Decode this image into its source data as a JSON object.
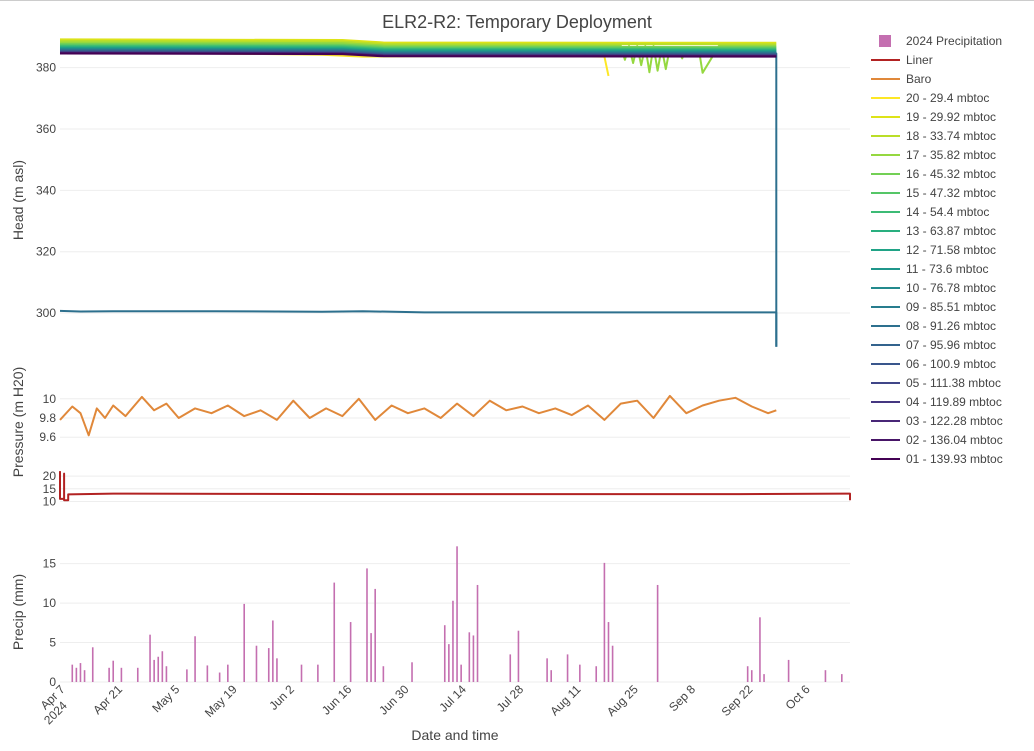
{
  "chart_data": {
    "title": "ELR2-R2: Temporary Deployment",
    "xlabel": "Date and time",
    "x_ticks": [
      "Apr 7\n2024",
      "Apr 21",
      "May 5",
      "May 19",
      "Jun 2",
      "Jun 16",
      "Jun 30",
      "Jul 14",
      "Jul 28",
      "Aug 11",
      "Aug 25",
      "Sep 8",
      "Sep 22",
      "Oct 6"
    ],
    "x_range": [
      "2024-04-07",
      "2024-10-17"
    ],
    "legend_position": "right",
    "panels": [
      {
        "name": "head",
        "type": "line",
        "ylabel": "Head (m asl)",
        "ylim": [
          286,
          389
        ],
        "y_ticks": [
          300,
          320,
          340,
          360,
          380
        ],
        "series": [
          {
            "name": "20 - 29.4 mbtoc",
            "color": "#fde725",
            "x": [
              "2024-04-07",
              "2024-05-15",
              "2024-06-10",
              "2024-06-20",
              "2024-07-20",
              "2024-08-18",
              "2024-08-19"
            ],
            "y": [
              384.6,
              384.6,
              384.2,
              383.6,
              383.9,
              383.6,
              377.3
            ]
          },
          {
            "name": "19 - 29.92 mbtoc",
            "color": "#dde318",
            "x": [
              "2024-04-07",
              "2024-06-15",
              "2024-06-25",
              "2024-09-29"
            ],
            "y": [
              389.2,
              389.0,
              388.2,
              388.1
            ]
          },
          {
            "name": "18 - 33.74 mbtoc",
            "color": "#bade28",
            "x": [
              "2024-04-07",
              "2024-06-15",
              "2024-06-25",
              "2024-09-29"
            ],
            "y": [
              388.7,
              388.5,
              387.7,
              387.6
            ]
          },
          {
            "name": "17 - 35.82 mbtoc",
            "color": "#95d840",
            "x": [
              "2024-04-07",
              "2024-06-15",
              "2024-06-25",
              "2024-08-22",
              "2024-08-23",
              "2024-08-24",
              "2024-08-25",
              "2024-08-26",
              "2024-08-27",
              "2024-08-28",
              "2024-08-29",
              "2024-08-30",
              "2024-08-31",
              "2024-09-01",
              "2024-09-02",
              "2024-09-03",
              "2024-09-05",
              "2024-09-06",
              "2024-09-07",
              "2024-09-10",
              "2024-09-11",
              "2024-09-15",
              "2024-09-29"
            ],
            "y": [
              388.2,
              388.0,
              387.2,
              387.1,
              382.5,
              387.0,
              381.5,
              387.0,
              380.8,
              387.0,
              378.5,
              387.0,
              379.0,
              386.5,
              379.5,
              386.5,
              386.5,
              383.0,
              386.6,
              386.6,
              378.3,
              387.1,
              387.1
            ]
          },
          {
            "name": "16 - 45.32 mbtoc",
            "color": "#73d055",
            "x": [
              "2024-04-07",
              "2024-06-15",
              "2024-06-25",
              "2024-09-29"
            ],
            "y": [
              387.7,
              387.5,
              386.8,
              386.7
            ]
          },
          {
            "name": "15 - 47.32 mbtoc",
            "color": "#55c667",
            "x": [
              "2024-04-07",
              "2024-06-15",
              "2024-06-25",
              "2024-09-29"
            ],
            "y": [
              387.3,
              387.1,
              386.4,
              386.3
            ]
          },
          {
            "name": "14 - 54.4 mbtoc",
            "color": "#3cbb75",
            "x": [
              "2024-04-07",
              "2024-06-15",
              "2024-06-25",
              "2024-09-29"
            ],
            "y": [
              387.0,
              386.8,
              386.1,
              386.0
            ]
          },
          {
            "name": "13 - 63.87 mbtoc",
            "color": "#29af7f",
            "x": [
              "2024-04-07",
              "2024-06-15",
              "2024-06-25",
              "2024-09-29"
            ],
            "y": [
              386.7,
              386.5,
              385.8,
              385.7
            ]
          },
          {
            "name": "12 - 71.58 mbtoc",
            "color": "#20a386",
            "x": [
              "2024-04-07",
              "2024-06-15",
              "2024-06-25",
              "2024-09-29"
            ],
            "y": [
              386.4,
              386.2,
              385.5,
              385.4
            ]
          },
          {
            "name": "11 - 73.6 mbtoc",
            "color": "#1f968b",
            "x": [
              "2024-04-07",
              "2024-06-15",
              "2024-06-25",
              "2024-09-29"
            ],
            "y": [
              386.2,
              386.0,
              385.3,
              385.2
            ]
          },
          {
            "name": "10 - 76.78 mbtoc",
            "color": "#238a8d",
            "x": [
              "2024-04-07",
              "2024-06-15",
              "2024-06-25",
              "2024-09-29"
            ],
            "y": [
              386.0,
              385.8,
              385.1,
              385.0
            ]
          },
          {
            "name": "09 - 85.51 mbtoc",
            "color": "#287d8e",
            "x": [
              "2024-04-07",
              "2024-06-15",
              "2024-06-25",
              "2024-09-29"
            ],
            "y": [
              385.8,
              385.6,
              384.9,
              384.8
            ]
          },
          {
            "name": "08 - 91.26 mbtoc",
            "color": "#2d708e",
            "x": [
              "2024-04-07",
              "2024-06-15",
              "2024-06-25",
              "2024-09-29",
              "2024-09-29",
              "2024-09-29"
            ],
            "y": [
              385.6,
              385.4,
              384.7,
              384.6,
              300.0,
              289.0
            ]
          },
          {
            "name": "07 - 95.96 mbtoc",
            "color": "#33638d",
            "x": [
              "2024-04-07",
              "2024-06-15",
              "2024-06-25",
              "2024-09-29"
            ],
            "y": [
              385.4,
              385.2,
              384.5,
              384.4
            ]
          },
          {
            "name": "06 - 100.9 mbtoc",
            "color": "#39568c",
            "x": [
              "2024-04-07",
              "2024-06-15",
              "2024-06-25",
              "2024-09-29"
            ],
            "y": [
              385.2,
              385.0,
              384.3,
              384.2
            ]
          },
          {
            "name": "05 - 111.38 mbtoc",
            "color": "#404688",
            "x": [
              "2024-04-07",
              "2024-06-15",
              "2024-06-25",
              "2024-09-29"
            ],
            "y": [
              385.0,
              384.8,
              384.1,
              384.0
            ]
          },
          {
            "name": "04 - 119.89 mbtoc",
            "color": "#453781",
            "x": [
              "2024-04-07",
              "2024-06-15",
              "2024-06-25",
              "2024-09-29"
            ],
            "y": [
              384.9,
              384.7,
              384.0,
              383.9
            ]
          },
          {
            "name": "03 - 122.28 mbtoc",
            "color": "#482677",
            "x": [
              "2024-04-07",
              "2024-06-15",
              "2024-06-25",
              "2024-09-29"
            ],
            "y": [
              384.8,
              384.6,
              383.9,
              383.8
            ]
          },
          {
            "name": "02 - 136.04 mbtoc",
            "color": "#481567",
            "x": [
              "2024-04-07",
              "2024-06-15",
              "2024-06-25",
              "2024-09-29"
            ],
            "y": [
              384.7,
              384.5,
              383.8,
              383.7
            ]
          },
          {
            "name": "01 - 139.93 mbtoc",
            "color": "#440154",
            "x": [
              "2024-04-07",
              "2024-06-15",
              "2024-06-25",
              "2024-09-29"
            ],
            "y": [
              384.6,
              384.4,
              383.7,
              383.6
            ]
          },
          {
            "name": "",
            "color": "#2d708e",
            "x": [
              "2024-04-07",
              "2024-04-12",
              "2024-04-20",
              "2024-05-15",
              "2024-06-10",
              "2024-06-20",
              "2024-07-05",
              "2024-09-29",
              "2024-09-29"
            ],
            "y": [
              300.7,
              300.5,
              300.6,
              300.6,
              300.4,
              300.6,
              300.2,
              300.2,
              289.0
            ]
          }
        ]
      },
      {
        "name": "pressure",
        "type": "line",
        "ylabel": "Pressure (m H20)",
        "ylim": [
          9.55,
          10.05
        ],
        "y_ticks": [
          9.6,
          9.8,
          10
        ],
        "series": [
          {
            "name": "Baro",
            "color": "#e0883a",
            "x": [
              "2024-04-07",
              "2024-04-10",
              "2024-04-12",
              "2024-04-14",
              "2024-04-16",
              "2024-04-18",
              "2024-04-20",
              "2024-04-23",
              "2024-04-27",
              "2024-04-30",
              "2024-05-03",
              "2024-05-06",
              "2024-05-10",
              "2024-05-14",
              "2024-05-18",
              "2024-05-22",
              "2024-05-26",
              "2024-05-30",
              "2024-06-03",
              "2024-06-07",
              "2024-06-11",
              "2024-06-15",
              "2024-06-19",
              "2024-06-23",
              "2024-06-27",
              "2024-07-01",
              "2024-07-05",
              "2024-07-09",
              "2024-07-13",
              "2024-07-17",
              "2024-07-21",
              "2024-07-25",
              "2024-07-29",
              "2024-08-02",
              "2024-08-06",
              "2024-08-10",
              "2024-08-14",
              "2024-08-18",
              "2024-08-22",
              "2024-08-26",
              "2024-08-30",
              "2024-09-03",
              "2024-09-07",
              "2024-09-11",
              "2024-09-15",
              "2024-09-19",
              "2024-09-23",
              "2024-09-27",
              "2024-09-29"
            ],
            "y": [
              9.78,
              9.92,
              9.85,
              9.62,
              9.9,
              9.8,
              9.93,
              9.82,
              10.02,
              9.88,
              9.95,
              9.8,
              9.9,
              9.85,
              9.93,
              9.82,
              9.88,
              9.78,
              9.98,
              9.8,
              9.9,
              9.82,
              10.0,
              9.78,
              9.93,
              9.85,
              9.9,
              9.8,
              9.95,
              9.82,
              9.98,
              9.88,
              9.92,
              9.85,
              9.9,
              9.83,
              9.93,
              9.78,
              9.95,
              9.98,
              9.8,
              10.03,
              9.85,
              9.93,
              9.98,
              10.01,
              9.92,
              9.85,
              9.88
            ]
          }
        ]
      },
      {
        "name": "liner",
        "type": "line",
        "ylim": [
          9,
          24
        ],
        "y_ticks": [
          10,
          15,
          20
        ],
        "series": [
          {
            "name": "Liner",
            "color": "#b22222",
            "x": [
              "2024-04-07",
              "2024-04-07",
              "2024-04-08",
              "2024-04-08",
              "2024-04-08",
              "2024-04-09",
              "2024-04-09",
              "2024-04-20",
              "2024-05-20",
              "2024-06-20",
              "2024-07-20",
              "2024-08-20",
              "2024-09-20",
              "2024-10-16",
              "2024-10-17",
              "2024-10-17"
            ],
            "y": [
              22.0,
              11.0,
              11.0,
              21.0,
              10.5,
              10.5,
              12.8,
              13.1,
              13.0,
              12.9,
              12.9,
              12.9,
              12.9,
              13.1,
              13.1,
              10.5
            ]
          }
        ]
      },
      {
        "name": "precip",
        "type": "bar",
        "ylabel": "Precip (mm)",
        "ylim": [
          0,
          18
        ],
        "y_ticks": [
          0,
          5,
          10,
          15
        ],
        "series": [
          {
            "name": "2024 Precipitation",
            "color": "#c46fb0",
            "x": [
              "2024-04-10",
              "2024-04-11",
              "2024-04-12",
              "2024-04-13",
              "2024-04-15",
              "2024-04-19",
              "2024-04-20",
              "2024-04-22",
              "2024-04-26",
              "2024-04-29",
              "2024-04-30",
              "2024-05-01",
              "2024-05-02",
              "2024-05-03",
              "2024-05-08",
              "2024-05-10",
              "2024-05-13",
              "2024-05-16",
              "2024-05-18",
              "2024-05-22",
              "2024-05-25",
              "2024-05-28",
              "2024-05-29",
              "2024-05-30",
              "2024-06-05",
              "2024-06-09",
              "2024-06-13",
              "2024-06-17",
              "2024-06-21",
              "2024-06-22",
              "2024-06-23",
              "2024-06-25",
              "2024-07-02",
              "2024-07-10",
              "2024-07-11",
              "2024-07-12",
              "2024-07-13",
              "2024-07-14",
              "2024-07-16",
              "2024-07-17",
              "2024-07-18",
              "2024-07-26",
              "2024-07-28",
              "2024-08-04",
              "2024-08-05",
              "2024-08-09",
              "2024-08-12",
              "2024-08-16",
              "2024-08-18",
              "2024-08-19",
              "2024-08-20",
              "2024-08-31",
              "2024-09-22",
              "2024-09-23",
              "2024-09-25",
              "2024-09-26",
              "2024-10-02",
              "2024-10-11",
              "2024-10-15"
            ],
            "y": [
              2.2,
              1.8,
              2.4,
              1.5,
              4.4,
              1.8,
              2.7,
              1.8,
              1.8,
              6.0,
              2.8,
              3.2,
              3.9,
              2.0,
              1.6,
              5.8,
              2.1,
              1.2,
              2.2,
              9.9,
              4.6,
              4.3,
              7.8,
              3.0,
              2.2,
              2.2,
              12.6,
              7.6,
              14.4,
              6.2,
              11.8,
              2.0,
              2.5,
              7.2,
              4.8,
              10.3,
              17.2,
              2.2,
              6.3,
              5.9,
              12.3,
              3.5,
              6.5,
              3.0,
              1.5,
              3.5,
              2.2,
              2.0,
              15.1,
              7.6,
              4.6,
              12.3,
              2.0,
              1.5,
              8.2,
              1.0,
              2.8,
              1.5,
              1.0
            ]
          }
        ]
      }
    ]
  }
}
